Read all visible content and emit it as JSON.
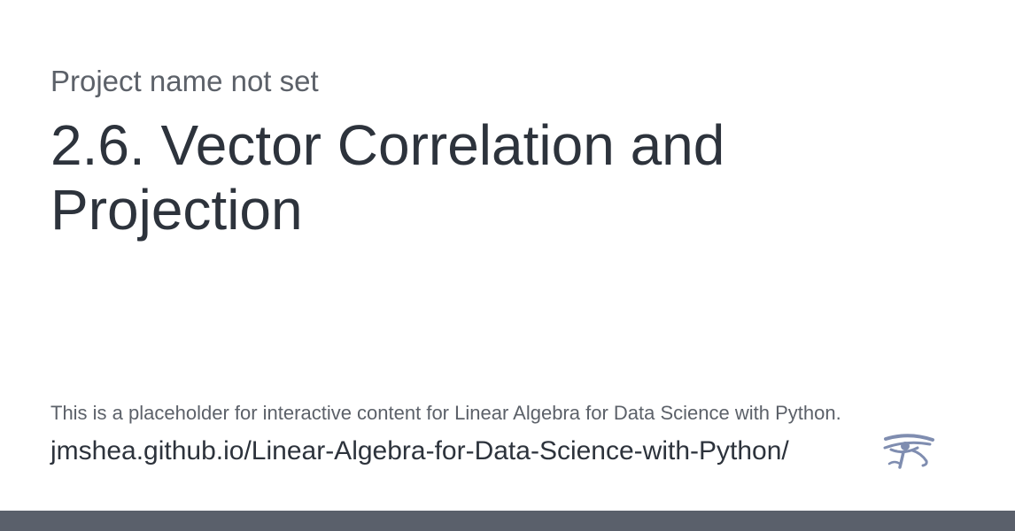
{
  "card": {
    "project_name": "Project name not set",
    "title": "2.6. Vector Correlation and Projection",
    "description": "This is a placeholder for interactive content for Linear Algebra for Data Science with Python.",
    "url": "jmshea.github.io/Linear-Algebra-for-Data-Science-with-Python/",
    "logo_icon": "eye-of-horus-icon"
  },
  "colors": {
    "background": "#ffffff",
    "title_text": "#2d333c",
    "muted_text": "#5c6169",
    "logo": "#7f8db0",
    "footer_bar": "#5a606b"
  }
}
